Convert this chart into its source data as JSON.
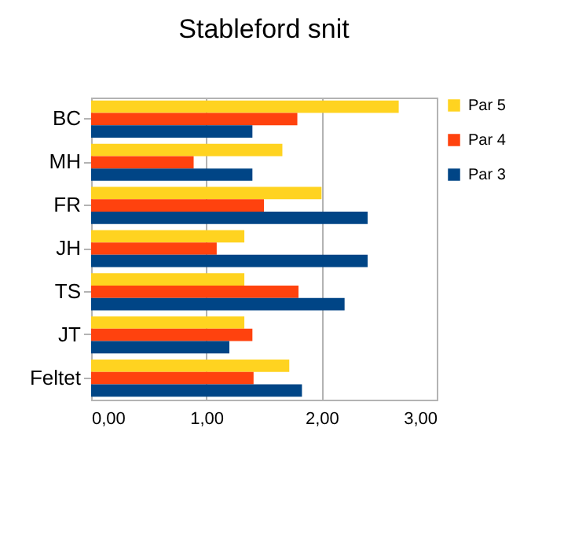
{
  "chart_data": {
    "type": "bar",
    "title": "Stableford snit",
    "orientation": "horizontal",
    "categories": [
      "BC",
      "MH",
      "FR",
      "JH",
      "TS",
      "JT",
      "Feltet"
    ],
    "series": [
      {
        "name": "Par 5",
        "color": "#ffd320",
        "values": [
          2.67,
          1.66,
          2.0,
          1.33,
          1.33,
          1.33,
          1.72
        ]
      },
      {
        "name": "Par 4",
        "color": "#ff420e",
        "values": [
          1.79,
          0.89,
          1.5,
          1.09,
          1.8,
          1.4,
          1.41
        ]
      },
      {
        "name": "Par 3",
        "color": "#004586",
        "values": [
          1.4,
          1.4,
          2.4,
          2.4,
          2.2,
          1.2,
          1.83
        ]
      }
    ],
    "xlim": [
      0,
      3
    ],
    "xticks": [
      {
        "value": 0,
        "label": "0,00"
      },
      {
        "value": 1,
        "label": "1,00"
      },
      {
        "value": 2,
        "label": "2,00"
      },
      {
        "value": 3,
        "label": "3,00"
      }
    ],
    "grid": "x",
    "legend": "right"
  }
}
